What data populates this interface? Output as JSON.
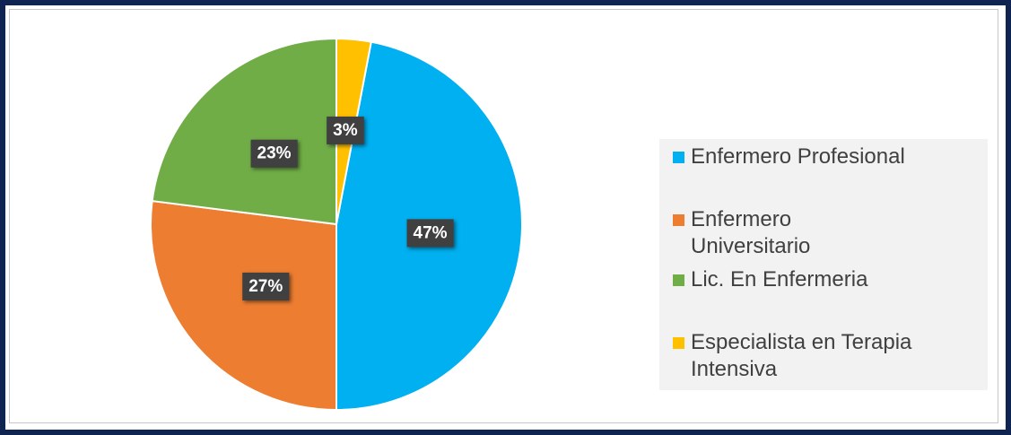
{
  "chart_data": {
    "type": "pie",
    "categories": [
      "Enfermero Profesional",
      "Enfermero Universitario",
      "Lic. En Enfermeria",
      "Especialista en Terapia Intensiva"
    ],
    "values": [
      47,
      27,
      23,
      3
    ],
    "value_labels": [
      "47%",
      "27%",
      "23%",
      "3%"
    ],
    "colors": [
      "#00b0f0",
      "#ed7d31",
      "#70ad47",
      "#ffc000"
    ],
    "legend": "right"
  }
}
